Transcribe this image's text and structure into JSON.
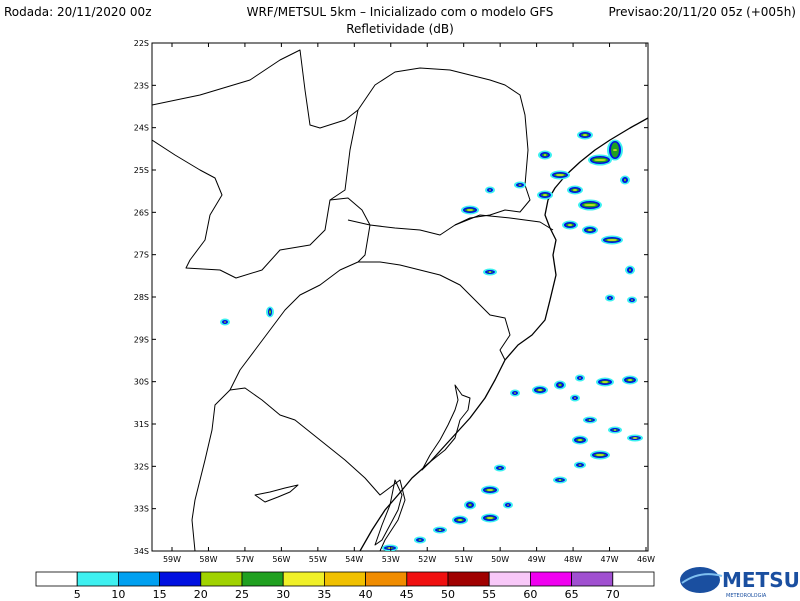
{
  "header": {
    "left": "Rodada: 20/11/2020 00z",
    "center": "WRF/METSUL 5km – Inicializado com o modelo GFS",
    "right": "Previsao:20/11/20 05z (+005h)",
    "subtitle": "Refletividade (dB)"
  },
  "map": {
    "lat_labels": [
      "22S",
      "23S",
      "24S",
      "25S",
      "26S",
      "27S",
      "28S",
      "29S",
      "30S",
      "31S",
      "32S",
      "33S",
      "34S"
    ],
    "lon_labels": [
      "59W",
      "58W",
      "57W",
      "56W",
      "55W",
      "54W",
      "53W",
      "52W",
      "51W",
      "50W",
      "49W",
      "48W",
      "47W",
      "46W"
    ]
  },
  "legend": {
    "levels": [
      5,
      10,
      15,
      20,
      25,
      30,
      35,
      40,
      45,
      50,
      55,
      60,
      65,
      70
    ],
    "colors": [
      "#ffffff",
      "#3ef0f0",
      "#00a0f0",
      "#0010e0",
      "#a0d200",
      "#20a020",
      "#f0f028",
      "#f0c000",
      "#f08c00",
      "#f01010",
      "#a00000",
      "#f8c8f8",
      "#f000f0",
      "#a050d0",
      "#ffffff"
    ]
  },
  "logo": {
    "name": "METSUL",
    "tagline": "METEOROLOGIA"
  }
}
